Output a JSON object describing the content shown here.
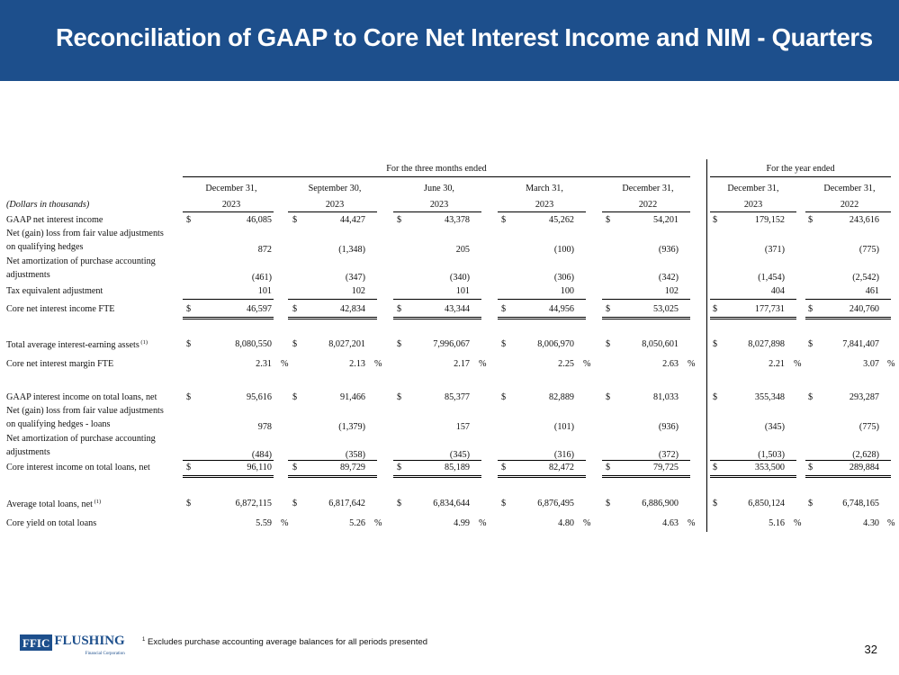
{
  "title": "Reconciliation of GAAP to Core Net Interest Income and NIM - Quarters",
  "table": {
    "group_quarters": "For the three months ended",
    "group_year": "For the year ended",
    "units_label": "(Dollars in thousands)",
    "columns": [
      {
        "month": "December 31,",
        "year": "2023"
      },
      {
        "month": "September 30,",
        "year": "2023"
      },
      {
        "month": "June 30,",
        "year": "2023"
      },
      {
        "month": "March 31,",
        "year": "2023"
      },
      {
        "month": "December 31,",
        "year": "2022"
      },
      {
        "month": "December 31,",
        "year": "2023"
      },
      {
        "month": "December 31,",
        "year": "2022"
      }
    ],
    "rows": [
      {
        "label": [
          "GAAP net interest income"
        ],
        "dollar": true,
        "values": [
          "46,085",
          "44,427",
          "43,378",
          "45,262",
          "54,201",
          "179,152",
          "243,616"
        ]
      },
      {
        "label": [
          "Net (gain) loss from fair value adjustments",
          "on qualifying hedges"
        ],
        "dollar": false,
        "values": [
          "872",
          "(1,348)",
          "205",
          "(100)",
          "(936)",
          "(371)",
          "(775)"
        ]
      },
      {
        "label": [
          "Net amortization of purchase accounting",
          "adjustments"
        ],
        "dollar": false,
        "values": [
          "(461)",
          "(347)",
          "(340)",
          "(306)",
          "(342)",
          "(1,454)",
          "(2,542)"
        ]
      },
      {
        "label": [
          "Tax equivalent adjustment"
        ],
        "dollar": false,
        "values": [
          "101",
          "102",
          "101",
          "100",
          "102",
          "404",
          "461"
        ]
      },
      {
        "label": [
          "Core net interest income FTE"
        ],
        "dollar": true,
        "values": [
          "46,597",
          "42,834",
          "43,344",
          "44,956",
          "53,025",
          "177,731",
          "240,760"
        ]
      },
      {
        "label": [
          "Total average interest-earning assets"
        ],
        "sup": "(1)",
        "dollar": true,
        "values": [
          "8,080,550",
          "8,027,201",
          "7,996,067",
          "8,006,970",
          "8,050,601",
          "8,027,898",
          "7,841,407"
        ]
      },
      {
        "label": [
          "Core net interest margin FTE"
        ],
        "percent": true,
        "values": [
          "2.31",
          "2.13",
          "2.17",
          "2.25",
          "2.63",
          "2.21",
          "3.07"
        ]
      },
      {
        "label": [
          "GAAP interest income on total loans, net"
        ],
        "dollar": true,
        "values": [
          "95,616",
          "91,466",
          "85,377",
          "82,889",
          "81,033",
          "355,348",
          "293,287"
        ]
      },
      {
        "label": [
          "Net (gain) loss from fair value adjustments",
          "on qualifying hedges - loans"
        ],
        "dollar": false,
        "values": [
          "978",
          "(1,379)",
          "157",
          "(101)",
          "(936)",
          "(345)",
          "(775)"
        ]
      },
      {
        "label": [
          "Net amortization of purchase accounting",
          "adjustments"
        ],
        "dollar": false,
        "values": [
          "(484)",
          "(358)",
          "(345)",
          "(316)",
          "(372)",
          "(1,503)",
          "(2,628)"
        ]
      },
      {
        "label": [
          "Core interest income on total loans, net"
        ],
        "dollar": true,
        "values": [
          "96,110",
          "89,729",
          "85,189",
          "82,472",
          "79,725",
          "353,500",
          "289,884"
        ]
      },
      {
        "label": [
          "Average total loans, net"
        ],
        "sup": "(1)",
        "dollar": true,
        "values": [
          "6,872,115",
          "6,817,642",
          "6,834,644",
          "6,876,495",
          "6,886,900",
          "6,850,124",
          "6,748,165"
        ]
      },
      {
        "label": [
          "Core yield on total loans"
        ],
        "percent": true,
        "values": [
          "5.59",
          "5.26",
          "4.99",
          "4.80",
          "4.63",
          "5.16",
          "4.30"
        ]
      }
    ],
    "dollar_sign": "$",
    "percent_sign": "%"
  },
  "footer": {
    "logo_box": "FFIC",
    "logo_name": "FLUSHING",
    "logo_sub": "Financial Corporation",
    "footnote_marker": "1",
    "footnote": "Excludes purchase accounting average balances for all periods presented",
    "page_number": "32"
  },
  "colors": {
    "header_bg": "#1d4f8c",
    "title_text": "#ffffff"
  }
}
